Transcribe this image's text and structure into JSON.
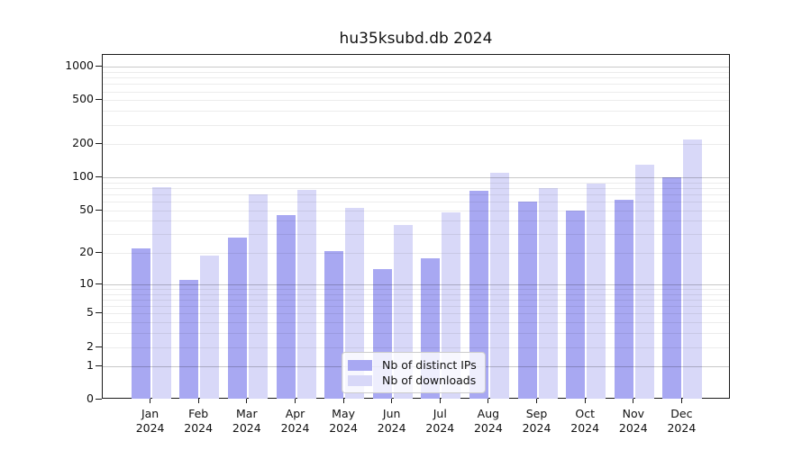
{
  "title": "hu35ksubd.db 2024",
  "colors": {
    "ips": "#a8a8f2",
    "downloads": "#d8d8f8",
    "grid_major": "#c8c8c8",
    "grid_minor": "#ececec",
    "axis": "#1a1a1a",
    "legend_border": "#cccccc"
  },
  "legend": {
    "items": [
      {
        "key": "ips",
        "label": "Nb of distinct IPs"
      },
      {
        "key": "downloads",
        "label": "Nb of downloads"
      }
    ]
  },
  "chart_data": {
    "type": "bar",
    "title": "hu35ksubd.db 2024",
    "categories": [
      "Jan 2024",
      "Feb 2024",
      "Mar 2024",
      "Apr 2024",
      "May 2024",
      "Jun 2024",
      "Jul 2024",
      "Aug 2024",
      "Sep 2024",
      "Oct 2024",
      "Nov 2024",
      "Dec 2024"
    ],
    "series": [
      {
        "name": "Nb of distinct IPs",
        "key": "ips",
        "values": [
          22,
          11,
          28,
          45,
          21,
          14,
          18,
          76,
          60,
          50,
          63,
          100
        ]
      },
      {
        "name": "Nb of downloads",
        "key": "downloads",
        "values": [
          82,
          19,
          70,
          77,
          53,
          37,
          48,
          110,
          80,
          88,
          130,
          220
        ]
      }
    ],
    "xlabel": "",
    "ylabel": "",
    "yscale": "log1p",
    "yticks": [
      0,
      1,
      2,
      5,
      10,
      20,
      50,
      100,
      200,
      500,
      1000
    ],
    "ylim": [
      0,
      1280
    ],
    "grid": true,
    "legend_position": "lower center"
  }
}
